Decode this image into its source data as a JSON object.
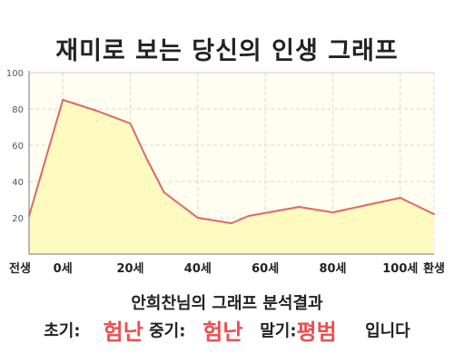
{
  "title": "재미로 보는 당신의 인생 그래프",
  "chart_data": {
    "type": "area",
    "title": "재미로 보는 당신의 인생 그래프",
    "x_tick_labels": [
      "전생",
      "0세",
      "20세",
      "40세",
      "60세",
      "80세",
      "100세",
      "환생"
    ],
    "y_ticks": [
      20,
      40,
      60,
      80,
      100
    ],
    "ylim": [
      0,
      100
    ],
    "grid": true,
    "series": [
      {
        "x": [
          "전생",
          "0세",
          "10세",
          "20세",
          "25세",
          "30세",
          "40세",
          "50세",
          "55세",
          "70세",
          "80세",
          "90세",
          "100세",
          "환생"
        ],
        "values": [
          21,
          85,
          79,
          72,
          52,
          34,
          20,
          17,
          21,
          26,
          23,
          27,
          31,
          22
        ]
      }
    ],
    "colors": {
      "line": "#e06666",
      "fill": "#fffac0",
      "plot_bg": "#fffef0",
      "grid": "#d8d8d8"
    }
  },
  "summary": {
    "title": "안희찬님의 그래프 분석결과",
    "early_label": "초기:",
    "early_value": "험난",
    "middle_label": "중기:",
    "middle_value": "험난",
    "late_label": "말기:",
    "late_value": "평범",
    "suffix": "입니다"
  }
}
